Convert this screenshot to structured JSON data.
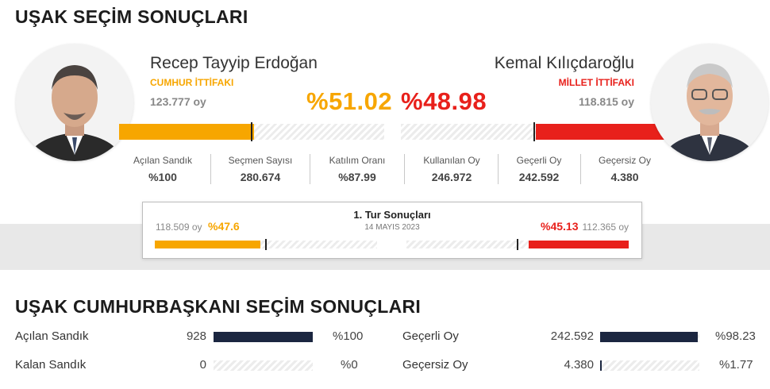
{
  "page_title": "UŞAK SEÇİM SONUÇLARI",
  "left_candidate": {
    "name": "Recep Tayyip Erdoğan",
    "alliance": "CUMHUR İTTİFAKI",
    "votes": "123.777 oy",
    "percent": "%51.02",
    "share": 51.02,
    "color": "#f7a600"
  },
  "right_candidate": {
    "name": "Kemal Kılıçdaroğlu",
    "alliance": "MİLLET İTTİFAKI",
    "votes": "118.815 oy",
    "percent": "%48.98",
    "share": 48.98,
    "color": "#e8201b"
  },
  "stats": [
    {
      "label": "Açılan Sandık",
      "value": "%100"
    },
    {
      "label": "Seçmen Sayısı",
      "value": "280.674"
    },
    {
      "label": "Katılım Oranı",
      "value": "%87.99"
    },
    {
      "label": "Kullanılan Oy",
      "value": "246.972"
    },
    {
      "label": "Geçerli Oy",
      "value": "242.592"
    },
    {
      "label": "Geçersiz Oy",
      "value": "4.380"
    }
  ],
  "first_round": {
    "title": "1. Tur Sonuçları",
    "date": "14 MAYIS 2023",
    "left_votes": "118.509 oy",
    "left_percent": "%47.6",
    "left_share": 47.6,
    "right_votes": "112.365 oy",
    "right_percent": "%45.13",
    "right_share": 45.13
  },
  "presidential": {
    "title": "UŞAK CUMHURBAŞKANI SEÇİM SONUÇLARI",
    "rows": [
      {
        "label": "Açılan Sandık",
        "value": "928",
        "percent": "%100",
        "share": 100
      },
      {
        "label": "Kalan Sandık",
        "value": "0",
        "percent": "%0",
        "share": 0
      },
      {
        "label": "Geçerli Oy",
        "value": "242.592",
        "percent": "%98.23",
        "share": 98.23
      },
      {
        "label": "Geçersiz Oy",
        "value": "4.380",
        "percent": "%1.77",
        "share": 1.77
      }
    ]
  }
}
